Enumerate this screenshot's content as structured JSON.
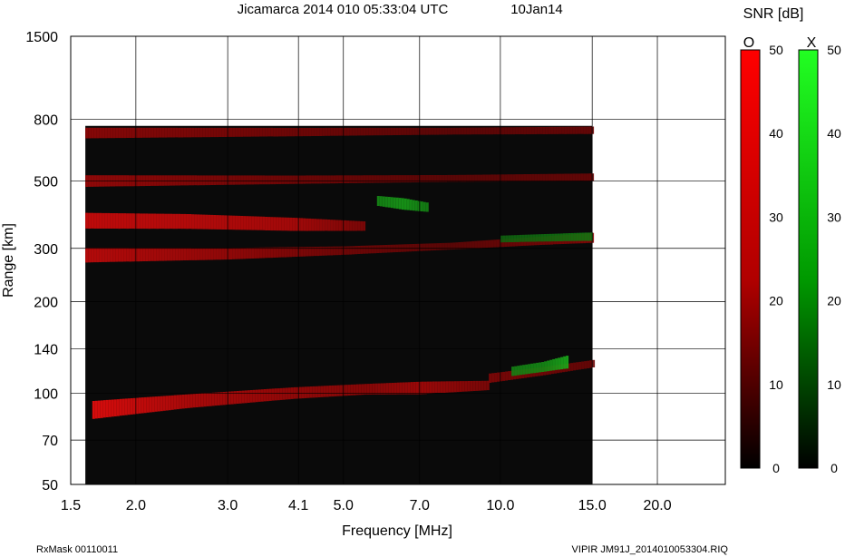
{
  "header": {
    "title": "Jicamarca 2014 010 05:33:04 UTC",
    "date": "10Jan14"
  },
  "footer": {
    "left": "RxMask 00110011",
    "right": "VIPIR  JM91J_2014010053304.RIQ"
  },
  "colorbars": {
    "title": "SNR [dB]",
    "o": {
      "label": "O",
      "ticks": [
        "50",
        "40",
        "30",
        "20",
        "10",
        "0"
      ],
      "top_color": "#ff0000",
      "bottom_color": "#000000"
    },
    "x": {
      "label": "X",
      "ticks": [
        "50",
        "40",
        "30",
        "20",
        "10",
        "0"
      ],
      "top_color": "#00ff00",
      "bottom_color": "#000000"
    },
    "range": [
      0,
      50
    ]
  },
  "chart_data": {
    "type": "heatmap",
    "title": "Jicamarca 2014 010 05:33:04 UTC",
    "xlabel": "Frequency [MHz]",
    "ylabel": "Range [km]",
    "x_scale": "log",
    "y_scale": "log",
    "xlim": [
      1.5,
      27.0
    ],
    "ylim": [
      50,
      1500
    ],
    "x_ticks": [
      1.5,
      2.0,
      3.0,
      4.1,
      5.0,
      7.0,
      10.0,
      15.0,
      20.0
    ],
    "x_tick_labels": [
      "1.5",
      "2.0",
      "3.0",
      "4.1",
      "5.0",
      "7.0",
      "10.0",
      "15.0",
      "20.0"
    ],
    "y_ticks": [
      1500,
      800,
      500,
      300,
      200,
      140,
      100,
      70,
      50
    ],
    "y_tick_labels": [
      "1500",
      "800",
      "500",
      "300",
      "200",
      "140",
      "100",
      "70",
      "50"
    ],
    "grid": true,
    "data_extent": {
      "freq": [
        1.6,
        15.0
      ],
      "range": [
        50,
        760
      ]
    },
    "color_scale": {
      "quantity": "SNR",
      "unit": "dB",
      "min": 0,
      "max": 50
    },
    "series": [
      {
        "name": "O",
        "color": "#ff0000",
        "traces": [
          {
            "freq": [
              1.65,
              2.5,
              4.0,
              5.5,
              7.0,
              9.5
            ],
            "range": [
              88,
              94,
              100,
              103,
              104,
              106
            ],
            "snr": [
              45,
              32,
              25,
              22,
              28,
              18
            ]
          },
          {
            "freq": [
              1.6,
              2.5,
              4.0,
              5.5
            ],
            "range": [
              370,
              368,
              360,
              355
            ],
            "snr": [
              38,
              35,
              30,
              18
            ]
          },
          {
            "freq": [
              1.6,
              3.0,
              5.0,
              8.0,
              12.0,
              15.0
            ],
            "range": [
              285,
              288,
              295,
              305,
              318,
              325
            ],
            "snr": [
              35,
              25,
              15,
              10,
              15,
              20
            ]
          },
          {
            "freq": [
              1.6,
              4.0,
              8.0,
              15.0
            ],
            "range": [
              500,
              505,
              510,
              515
            ],
            "snr": [
              25,
              15,
              10,
              12
            ]
          },
          {
            "freq": [
              1.6,
              4.0,
              8.0,
              15.0
            ],
            "range": [
              720,
              725,
              730,
              735
            ],
            "snr": [
              22,
              15,
              10,
              12
            ]
          },
          {
            "freq": [
              9.5,
              12.0,
              15.0
            ],
            "range": [
              112,
              118,
              125
            ],
            "snr": [
              18,
              15,
              12
            ]
          }
        ]
      },
      {
        "name": "X",
        "color": "#00ff00",
        "traces": [
          {
            "freq": [
              5.8,
              6.5,
              7.2
            ],
            "range": [
              430,
              420,
              410
            ],
            "snr": [
              20,
              25,
              18
            ]
          },
          {
            "freq": [
              10.5,
              12.0,
              13.5
            ],
            "range": [
              118,
              122,
              127
            ],
            "snr": [
              18,
              20,
              30
            ]
          },
          {
            "freq": [
              10.0,
              12.0,
              15.0
            ],
            "range": [
              322,
              325,
              328
            ],
            "snr": [
              10,
              12,
              15
            ]
          }
        ]
      }
    ]
  }
}
